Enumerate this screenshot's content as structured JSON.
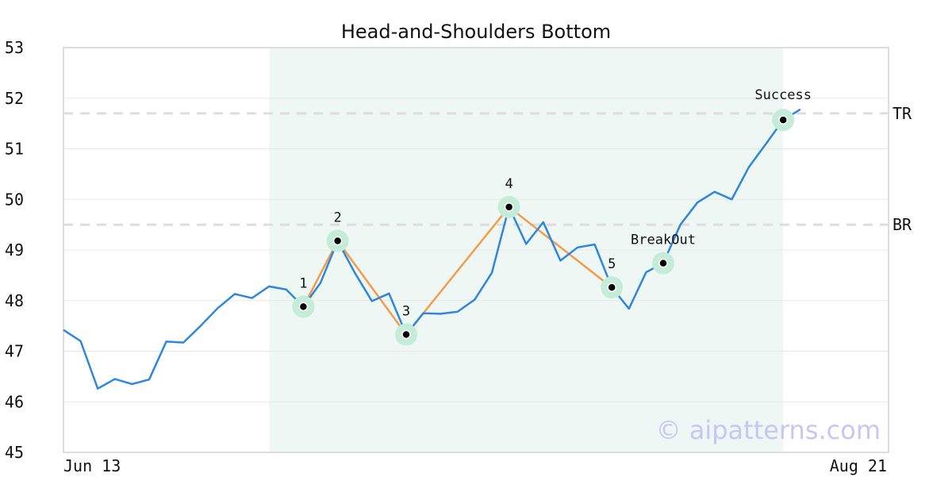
{
  "chart_data": {
    "type": "line",
    "title": "Head-and-Shoulders Bottom",
    "ylim": [
      45,
      53
    ],
    "y_ticks": [
      "45",
      "46",
      "47",
      "48",
      "49",
      "50",
      "51",
      "52",
      "53"
    ],
    "x_tick_labels": [
      "Jun 13",
      "Aug 21"
    ],
    "grid": true,
    "series": [
      {
        "values": [
          47.42,
          47.2,
          46.26,
          46.45,
          46.35,
          46.44,
          47.19,
          47.17,
          47.5,
          47.85,
          48.13,
          48.05,
          48.28,
          48.22,
          47.88,
          48.35,
          49.18,
          48.55,
          47.99,
          48.14,
          47.33,
          47.75,
          47.74,
          47.78,
          48.02,
          48.55,
          49.85,
          49.12,
          49.55,
          48.79,
          49.05,
          49.11,
          48.26,
          47.84,
          48.56,
          48.74,
          49.5,
          49.94,
          50.15,
          50.0,
          50.64,
          51.1,
          51.57,
          51.78
        ]
      }
    ],
    "pattern": {
      "points": [
        {
          "label": "1",
          "index": 14,
          "value": 47.88
        },
        {
          "label": "2",
          "index": 16,
          "value": 49.18
        },
        {
          "label": "3",
          "index": 20,
          "value": 47.33
        },
        {
          "label": "4",
          "index": 26,
          "value": 49.85
        },
        {
          "label": "5",
          "index": 32,
          "value": 48.26
        }
      ],
      "breakout": {
        "label": "BreakOut",
        "index": 35,
        "value": 48.74
      },
      "success": {
        "label": "Success",
        "index": 42,
        "value": 51.57
      },
      "shaded_range": [
        12,
        42
      ]
    },
    "reference_lines": [
      {
        "label": "TR",
        "value": 51.7
      },
      {
        "label": "BR",
        "value": 49.5
      }
    ],
    "watermark": "© aipatterns.com",
    "colors": {
      "price_line": "#2e86de",
      "pattern_line": "#f39c4a",
      "highlight": "#c5ebd9",
      "shade": "#eef7f3",
      "reference": "#dddddd",
      "grid": "#e8e8e8",
      "frame": "#dddddd",
      "watermark": "#c9c6f3"
    }
  }
}
